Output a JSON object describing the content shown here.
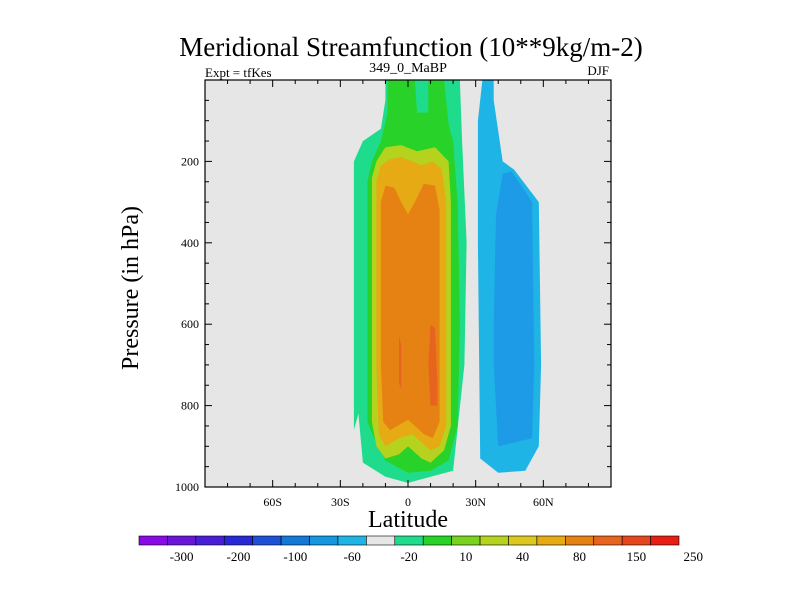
{
  "chart_data": {
    "type": "heatmap",
    "title": "Meridional Streamfunction (10**9kg/m-2)",
    "subtitle_left": "Expt = tfKes",
    "subtitle_center": "349_0_MaBP",
    "subtitle_right": "DJF",
    "xlabel": "Latitude",
    "ylabel": "Pressure (in hPa)",
    "xlim": [
      -90,
      90
    ],
    "ylim": [
      1000,
      0
    ],
    "x_ticks": [
      {
        "value": -60,
        "label": "60S"
      },
      {
        "value": -30,
        "label": "30S"
      },
      {
        "value": 0,
        "label": "0"
      },
      {
        "value": 30,
        "label": "30N"
      },
      {
        "value": 60,
        "label": "60N"
      }
    ],
    "y_ticks": [
      {
        "value": 200,
        "label": "200"
      },
      {
        "value": 400,
        "label": "400"
      },
      {
        "value": 600,
        "label": "600"
      },
      {
        "value": 800,
        "label": "800"
      },
      {
        "value": 1000,
        "label": "1000"
      }
    ],
    "missing_color": "#e6e6e6",
    "colorbar": {
      "colors": [
        "#8a0ae6",
        "#6a14d9",
        "#4a1ed6",
        "#2828d6",
        "#1e50d6",
        "#1478d6",
        "#1496e0",
        "#1eb4e6",
        "#e6e6e6",
        "#1edc8c",
        "#28d228",
        "#78d21e",
        "#b4d21e",
        "#dcc81e",
        "#e6aa14",
        "#e68214",
        "#e6641e",
        "#e6461e",
        "#e61e14"
      ],
      "labels": [
        "-300",
        "-200",
        "-100",
        "-60",
        "-20",
        "10",
        "40",
        "80",
        "150",
        "250"
      ]
    },
    "contours": [
      {
        "level": 10,
        "color": "#1edc8c",
        "points": [
          [
            -10,
            0
          ],
          [
            -10,
            50
          ],
          [
            -12,
            120
          ],
          [
            -20,
            150
          ],
          [
            -24,
            200
          ],
          [
            -24,
            360
          ],
          [
            -24,
            600
          ],
          [
            -24,
            860
          ],
          [
            -22,
            820
          ],
          [
            -20,
            940
          ],
          [
            -10,
            975
          ],
          [
            0,
            990
          ],
          [
            10,
            975
          ],
          [
            20,
            960
          ],
          [
            25,
            700
          ],
          [
            26,
            400
          ],
          [
            24,
            150
          ],
          [
            23,
            0
          ]
        ]
      },
      {
        "level": 10,
        "color": "#1edc8c",
        "points": [
          [
            5,
            0
          ],
          [
            8,
            20
          ],
          [
            15,
            30
          ],
          [
            15,
            0
          ]
        ]
      },
      {
        "level": -20,
        "color": "#1eb4e6",
        "points": [
          [
            33,
            0
          ],
          [
            38,
            0
          ],
          [
            38,
            50
          ],
          [
            42,
            200
          ],
          [
            47,
            220
          ],
          [
            58,
            300
          ],
          [
            59,
            700
          ],
          [
            58,
            900
          ],
          [
            52,
            960
          ],
          [
            40,
            965
          ],
          [
            32,
            930
          ],
          [
            31,
            400
          ],
          [
            31,
            100
          ]
        ]
      },
      {
        "level": 40,
        "color": "#28d228",
        "points": [
          [
            -9,
            0
          ],
          [
            -9,
            80
          ],
          [
            -12,
            150
          ],
          [
            -16,
            200
          ],
          [
            -18,
            250
          ],
          [
            -18,
            600
          ],
          [
            -18,
            840
          ],
          [
            -15,
            880
          ],
          [
            -10,
            935
          ],
          [
            0,
            965
          ],
          [
            10,
            960
          ],
          [
            18,
            935
          ],
          [
            22,
            850
          ],
          [
            23,
            600
          ],
          [
            22,
            300
          ],
          [
            20,
            150
          ],
          [
            18,
            110
          ],
          [
            16,
            0
          ],
          [
            9,
            0
          ],
          [
            9,
            80
          ],
          [
            4,
            80
          ],
          [
            3,
            0
          ],
          [
            -9,
            0
          ]
        ]
      },
      {
        "level": 80,
        "color": "#b4d21e",
        "points": [
          [
            -16,
            240
          ],
          [
            -14,
            200
          ],
          [
            -10,
            165
          ],
          [
            -3,
            160
          ],
          [
            4,
            175
          ],
          [
            12,
            165
          ],
          [
            18,
            200
          ],
          [
            19,
            300
          ],
          [
            19,
            850
          ],
          [
            16,
            910
          ],
          [
            10,
            940
          ],
          [
            6,
            930
          ],
          [
            0,
            900
          ],
          [
            -4,
            920
          ],
          [
            -10,
            930
          ],
          [
            -14,
            900
          ],
          [
            -16,
            840
          ],
          [
            -16,
            400
          ]
        ]
      },
      {
        "level": 150,
        "color": "#e6aa14",
        "points": [
          [
            -14,
            250
          ],
          [
            -12,
            210
          ],
          [
            -8,
            195
          ],
          [
            -3,
            190
          ],
          [
            2,
            200
          ],
          [
            6,
            210
          ],
          [
            11,
            200
          ],
          [
            15,
            220
          ],
          [
            17,
            300
          ],
          [
            17,
            850
          ],
          [
            14,
            900
          ],
          [
            10,
            910
          ],
          [
            6,
            890
          ],
          [
            2,
            870
          ],
          [
            -4,
            880
          ],
          [
            -10,
            900
          ],
          [
            -13,
            870
          ],
          [
            -14,
            700
          ]
        ]
      },
      {
        "level": 250,
        "color": "#e68214",
        "points": [
          [
            -12,
            300
          ],
          [
            -10,
            260
          ],
          [
            -6,
            265
          ],
          [
            -3,
            300
          ],
          [
            0,
            330
          ],
          [
            3,
            300
          ],
          [
            7,
            255
          ],
          [
            12,
            260
          ],
          [
            14,
            320
          ],
          [
            14,
            840
          ],
          [
            11,
            880
          ],
          [
            7,
            870
          ],
          [
            3,
            850
          ],
          [
            0,
            835
          ],
          [
            -3,
            845
          ],
          [
            -8,
            860
          ],
          [
            -11,
            840
          ],
          [
            -12,
            700
          ]
        ]
      },
      {
        "level": 350,
        "color": "#e6641e",
        "points": [
          [
            -4,
            630
          ],
          [
            -3,
            650
          ],
          [
            -3,
            760
          ],
          [
            -4,
            745
          ]
        ]
      },
      {
        "level": 350,
        "color": "#e6641e",
        "points": [
          [
            10,
            600
          ],
          [
            12,
            610
          ],
          [
            13,
            740
          ],
          [
            13,
            800
          ],
          [
            10,
            800
          ],
          [
            9,
            700
          ]
        ]
      },
      {
        "level": -30,
        "color": "#1e9be6",
        "points": [
          [
            38,
            700
          ],
          [
            38,
            600
          ],
          [
            39,
            330
          ],
          [
            42,
            230
          ],
          [
            46,
            225
          ],
          [
            55,
            300
          ],
          [
            56,
            700
          ],
          [
            55,
            880
          ],
          [
            40,
            900
          ],
          [
            39,
            800
          ]
        ]
      }
    ]
  }
}
